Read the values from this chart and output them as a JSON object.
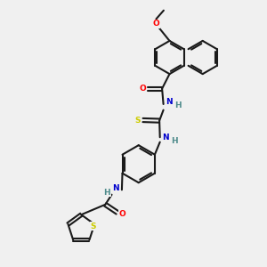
{
  "bg_color": "#f0f0f0",
  "bond_color": "#1a1a1a",
  "bond_width": 1.5,
  "atom_colors": {
    "O": "#ff0000",
    "N": "#0000cd",
    "S": "#cccc00",
    "H": "#4e8b8b"
  },
  "font_size": 6.5,
  "fig_width": 3.0,
  "fig_height": 3.0,
  "dpi": 100
}
